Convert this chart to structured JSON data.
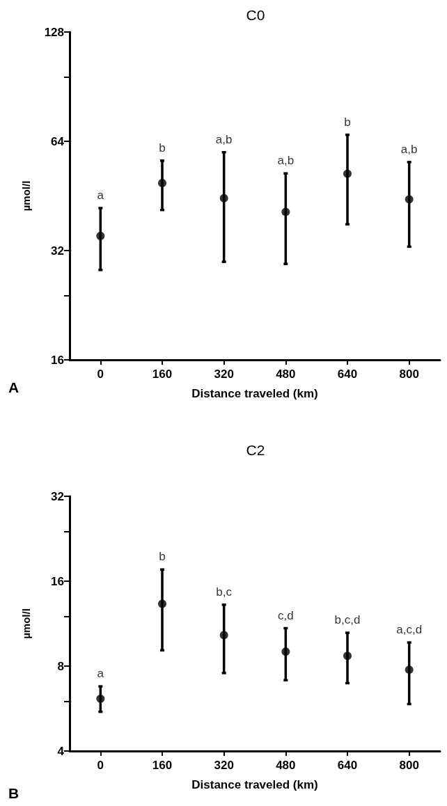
{
  "chart_data": [
    {
      "type": "scatter",
      "title": "C0",
      "xlabel": "Distance traveled (km)",
      "ylabel": "µmol/l",
      "categories": [
        "0",
        "160",
        "320",
        "480",
        "640",
        "800"
      ],
      "values": [
        35.1,
        49.1,
        44.6,
        40.9,
        52.1,
        44.3
      ],
      "errors": [
        [
          28.3,
          41.9
        ],
        [
          41.4,
          56.6
        ],
        [
          29.8,
          59.7
        ],
        [
          29.4,
          52.2
        ],
        [
          37.8,
          66.7
        ],
        [
          32.8,
          56.1
        ]
      ],
      "color": "#000000",
      "marker": "circle",
      "log": "y",
      "grid": false,
      "ylim": [
        16,
        128
      ],
      "yticks": [
        16,
        {
          "value": 24,
          "label": null
        },
        32,
        64,
        {
          "value": 96,
          "label": null
        },
        128
      ],
      "annotations": [
        {
          "text": "a",
          "x": "0",
          "y": 41.9
        },
        {
          "text": "b",
          "x": "160",
          "y": 56.6
        },
        {
          "text": "a,b",
          "x": "320",
          "y": 59.7
        },
        {
          "text": "a,b",
          "x": "480",
          "y": 52.2
        },
        {
          "text": "b",
          "x": "640",
          "y": 66.7
        },
        {
          "text": "a,b",
          "x": "800",
          "y": 56.1
        },
        "A"
      ]
    },
    {
      "type": "scatter",
      "title": "C2",
      "xlabel": "Distance traveled (km)",
      "ylabel": "µmol/l",
      "categories": [
        "0",
        "160",
        "320",
        "480",
        "640",
        "800"
      ],
      "values": [
        6.13,
        13.3,
        10.3,
        9.0,
        8.7,
        7.77
      ],
      "errors": [
        [
          5.51,
          6.78
        ],
        [
          9.1,
          17.6
        ],
        [
          7.56,
          13.2
        ],
        [
          7.13,
          10.9
        ],
        [
          6.96,
          10.5
        ],
        [
          5.87,
          9.7
        ]
      ],
      "color": "#000000",
      "marker": "circle",
      "log": "y",
      "grid": false,
      "ylim": [
        4,
        32
      ],
      "yticks": [
        4,
        {
          "value": 6,
          "label": null
        },
        8,
        {
          "value": 12,
          "label": null
        },
        16,
        {
          "value": 24,
          "label": null
        },
        32
      ],
      "annotations": [
        {
          "text": "a",
          "x": "0",
          "y": 6.78
        },
        {
          "text": "b",
          "x": "160",
          "y": 17.6
        },
        {
          "text": "b,c",
          "x": "320",
          "y": 13.2
        },
        {
          "text": "c,d",
          "x": "480",
          "y": 10.9
        },
        {
          "text": "b,c,d",
          "x": "640",
          "y": 10.5
        },
        {
          "text": "a,c,d",
          "x": "800",
          "y": 9.7
        },
        "B"
      ]
    }
  ]
}
